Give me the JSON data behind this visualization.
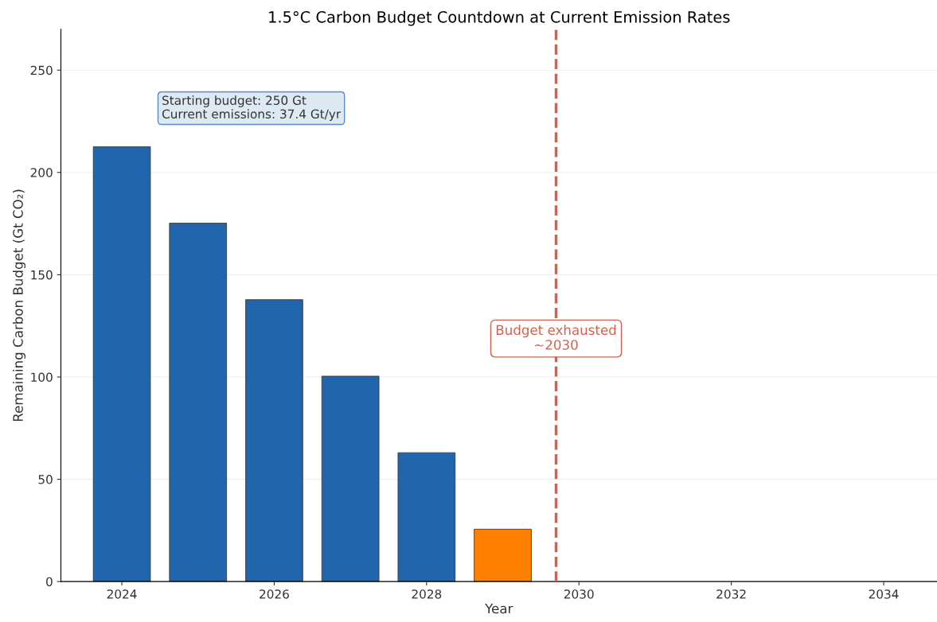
{
  "chart_data": {
    "type": "bar",
    "title": "1.5°C Carbon Budget Countdown at Current Emission Rates",
    "xlabel": "Year",
    "ylabel": "Remaining Carbon Budget (Gt CO₂)",
    "x": [
      2024,
      2025,
      2026,
      2027,
      2028,
      2029
    ],
    "values": [
      212.6,
      175.2,
      137.8,
      100.4,
      63.0,
      25.6
    ],
    "colors": [
      "#2166ac",
      "#2166ac",
      "#2166ac",
      "#2166ac",
      "#2166ac",
      "#ff7f00"
    ],
    "xlim": [
      2023.2,
      2034.7
    ],
    "xticks": [
      2024,
      2026,
      2028,
      2030,
      2032,
      2034
    ],
    "ylim": [
      0,
      270
    ],
    "yticks": [
      0,
      50,
      100,
      150,
      200,
      250
    ],
    "grid": "y",
    "ref_lines": [
      {
        "axis": "x",
        "value": 2029.7,
        "label": "Budget exhausted\n~2030",
        "color": "#d6604d",
        "line_style": "dashed"
      }
    ],
    "annotations": [
      "Starting budget: 250 Gt\nCurrent emissions: 37.4 Gt/yr"
    ]
  }
}
